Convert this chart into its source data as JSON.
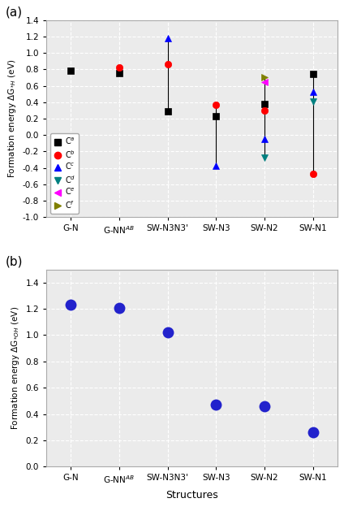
{
  "structures": [
    "G-N",
    "G-NN$^{AB}$",
    "SW-N3N3'",
    "SW-N3",
    "SW-N2",
    "SW-N1"
  ],
  "panel_a": {
    "ylabel": "Formation energy ΔG$_{*H}$ (eV)",
    "ylim": [
      -1.0,
      1.4
    ],
    "yticks": [
      -1.0,
      -0.8,
      -0.6,
      -0.4,
      -0.2,
      0.0,
      0.2,
      0.4,
      0.6,
      0.8,
      1.0,
      1.2,
      1.4
    ],
    "series": {
      "Ca": {
        "label": "C$^a$",
        "color": "black",
        "marker": "s",
        "values": [
          0.78,
          0.75,
          0.29,
          0.23,
          0.38,
          0.74
        ]
      },
      "Cb": {
        "label": "C$^b$",
        "color": "red",
        "marker": "o",
        "values": [
          null,
          0.82,
          0.86,
          0.37,
          0.3,
          -0.47
        ]
      },
      "Cc": {
        "label": "C$^c$",
        "color": "blue",
        "marker": "^",
        "values": [
          null,
          null,
          1.18,
          -0.37,
          -0.05,
          0.53
        ]
      },
      "Cd": {
        "label": "C$^d$",
        "color": "#008080",
        "marker": "v",
        "values": [
          null,
          null,
          null,
          null,
          -0.27,
          0.41
        ]
      },
      "Ce": {
        "label": "C$^e$",
        "color": "magenta",
        "marker": "<",
        "values": [
          null,
          null,
          null,
          null,
          0.65,
          null
        ]
      },
      "Cf": {
        "label": "C$^f$",
        "color": "#808000",
        "marker": ">",
        "values": [
          null,
          null,
          null,
          null,
          0.7,
          null
        ]
      }
    },
    "vlines": [
      [
        1,
        0.75,
        0.82
      ],
      [
        2,
        0.29,
        1.18
      ],
      [
        3,
        -0.37,
        0.37
      ],
      [
        4,
        -0.27,
        0.7
      ],
      [
        5,
        -0.47,
        0.74
      ]
    ]
  },
  "panel_b": {
    "ylabel": "Formation energy ΔG$_{*OH}$ (eV)",
    "ylim": [
      0.0,
      1.5
    ],
    "yticks": [
      0.0,
      0.2,
      0.4,
      0.6,
      0.8,
      1.0,
      1.2,
      1.4
    ],
    "values": [
      1.23,
      1.21,
      1.02,
      0.47,
      0.46,
      0.26
    ],
    "color": "#2222cc",
    "marker": "o",
    "markersize": 10
  },
  "xlabel": "Structures",
  "background_color": "#ebebeb",
  "grid_color": "white",
  "grid_linestyle": "--",
  "marker_size_a": 6
}
